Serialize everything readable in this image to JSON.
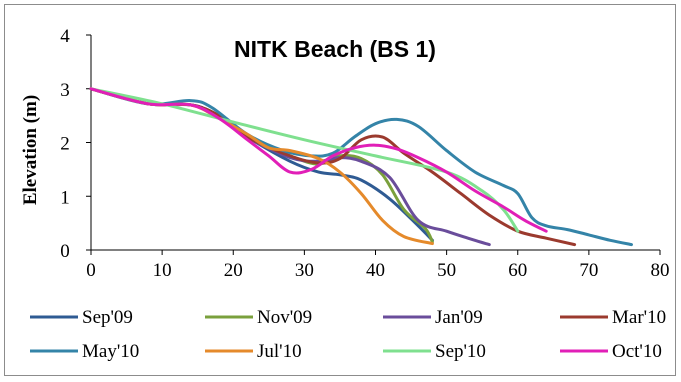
{
  "chart_data": {
    "type": "line",
    "title": "NITK Beach (BS 1)",
    "xlabel": "",
    "ylabel": "Elevation (m)",
    "xlim": [
      0,
      80
    ],
    "ylim": [
      0,
      4
    ],
    "xticks": [
      "0",
      "10",
      "20",
      "30",
      "40",
      "50",
      "60",
      "70",
      "80"
    ],
    "yticks": [
      "0",
      "1",
      "2",
      "3",
      "4"
    ],
    "grid": false,
    "legend_position": "bottom",
    "series": [
      {
        "name": "Sep'09",
        "color": "#2f5b93",
        "points": [
          [
            0,
            3.0
          ],
          [
            8,
            2.72
          ],
          [
            14,
            2.7
          ],
          [
            17,
            2.55
          ],
          [
            22,
            2.1
          ],
          [
            28,
            1.65
          ],
          [
            32,
            1.45
          ],
          [
            35,
            1.4
          ],
          [
            38,
            1.3
          ],
          [
            42,
            0.95
          ],
          [
            46,
            0.45
          ],
          [
            48,
            0.18
          ]
        ]
      },
      {
        "name": "Nov'09",
        "color": "#7aa03c",
        "points": [
          [
            0,
            3.0
          ],
          [
            8,
            2.72
          ],
          [
            14,
            2.7
          ],
          [
            18,
            2.5
          ],
          [
            22,
            2.1
          ],
          [
            28,
            1.75
          ],
          [
            32,
            1.6
          ],
          [
            35,
            1.75
          ],
          [
            38,
            1.7
          ],
          [
            41,
            1.4
          ],
          [
            44,
            0.75
          ],
          [
            47,
            0.4
          ],
          [
            48,
            0.15
          ]
        ]
      },
      {
        "name": "Jan'09",
        "color": "#6a4d9b",
        "points": [
          [
            0,
            3.0
          ],
          [
            8,
            2.72
          ],
          [
            14,
            2.7
          ],
          [
            18,
            2.5
          ],
          [
            22,
            2.1
          ],
          [
            28,
            1.72
          ],
          [
            32,
            1.65
          ],
          [
            35,
            1.72
          ],
          [
            38,
            1.65
          ],
          [
            42,
            1.35
          ],
          [
            46,
            0.55
          ],
          [
            50,
            0.35
          ],
          [
            53,
            0.22
          ],
          [
            56,
            0.1
          ]
        ]
      },
      {
        "name": "Mar'10",
        "color": "#9b3a2e",
        "points": [
          [
            0,
            3.0
          ],
          [
            8,
            2.72
          ],
          [
            14,
            2.7
          ],
          [
            18,
            2.5
          ],
          [
            22,
            2.1
          ],
          [
            28,
            1.75
          ],
          [
            32,
            1.62
          ],
          [
            35,
            1.7
          ],
          [
            38,
            2.05
          ],
          [
            41,
            2.1
          ],
          [
            44,
            1.8
          ],
          [
            48,
            1.45
          ],
          [
            52,
            1.05
          ],
          [
            56,
            0.65
          ],
          [
            60,
            0.35
          ],
          [
            64,
            0.22
          ],
          [
            68,
            0.1
          ]
        ]
      },
      {
        "name": "May'10",
        "color": "#3484a8",
        "points": [
          [
            0,
            3.0
          ],
          [
            8,
            2.72
          ],
          [
            14,
            2.78
          ],
          [
            17,
            2.65
          ],
          [
            22,
            2.15
          ],
          [
            27,
            1.85
          ],
          [
            31,
            1.75
          ],
          [
            34,
            1.8
          ],
          [
            37,
            2.1
          ],
          [
            40,
            2.35
          ],
          [
            43,
            2.43
          ],
          [
            46,
            2.3
          ],
          [
            50,
            1.85
          ],
          [
            54,
            1.45
          ],
          [
            58,
            1.2
          ],
          [
            60,
            1.05
          ],
          [
            62,
            0.6
          ],
          [
            64,
            0.45
          ],
          [
            67,
            0.38
          ],
          [
            70,
            0.28
          ],
          [
            73,
            0.18
          ],
          [
            76,
            0.1
          ]
        ]
      },
      {
        "name": "Jul'10",
        "color": "#e58a2b",
        "points": [
          [
            0,
            3.0
          ],
          [
            8,
            2.72
          ],
          [
            14,
            2.7
          ],
          [
            18,
            2.45
          ],
          [
            22,
            2.15
          ],
          [
            25,
            1.9
          ],
          [
            28,
            1.85
          ],
          [
            32,
            1.7
          ],
          [
            35,
            1.45
          ],
          [
            38,
            1.05
          ],
          [
            41,
            0.55
          ],
          [
            44,
            0.25
          ],
          [
            48,
            0.12
          ]
        ]
      },
      {
        "name": "Sep'10",
        "color": "#7fe08f",
        "points": [
          [
            0,
            3.0
          ],
          [
            10,
            2.72
          ],
          [
            20,
            2.38
          ],
          [
            30,
            2.05
          ],
          [
            40,
            1.75
          ],
          [
            50,
            1.45
          ],
          [
            55,
            1.1
          ],
          [
            58,
            0.75
          ],
          [
            60,
            0.35
          ]
        ]
      },
      {
        "name": "Oct'10",
        "color": "#e11fb7",
        "points": [
          [
            0,
            3.0
          ],
          [
            8,
            2.72
          ],
          [
            14,
            2.7
          ],
          [
            18,
            2.45
          ],
          [
            22,
            2.05
          ],
          [
            25,
            1.75
          ],
          [
            28,
            1.45
          ],
          [
            31,
            1.5
          ],
          [
            34,
            1.75
          ],
          [
            37,
            1.9
          ],
          [
            40,
            1.95
          ],
          [
            43,
            1.88
          ],
          [
            46,
            1.72
          ],
          [
            50,
            1.45
          ],
          [
            54,
            1.1
          ],
          [
            58,
            0.8
          ],
          [
            61,
            0.55
          ],
          [
            64,
            0.35
          ]
        ]
      }
    ]
  }
}
